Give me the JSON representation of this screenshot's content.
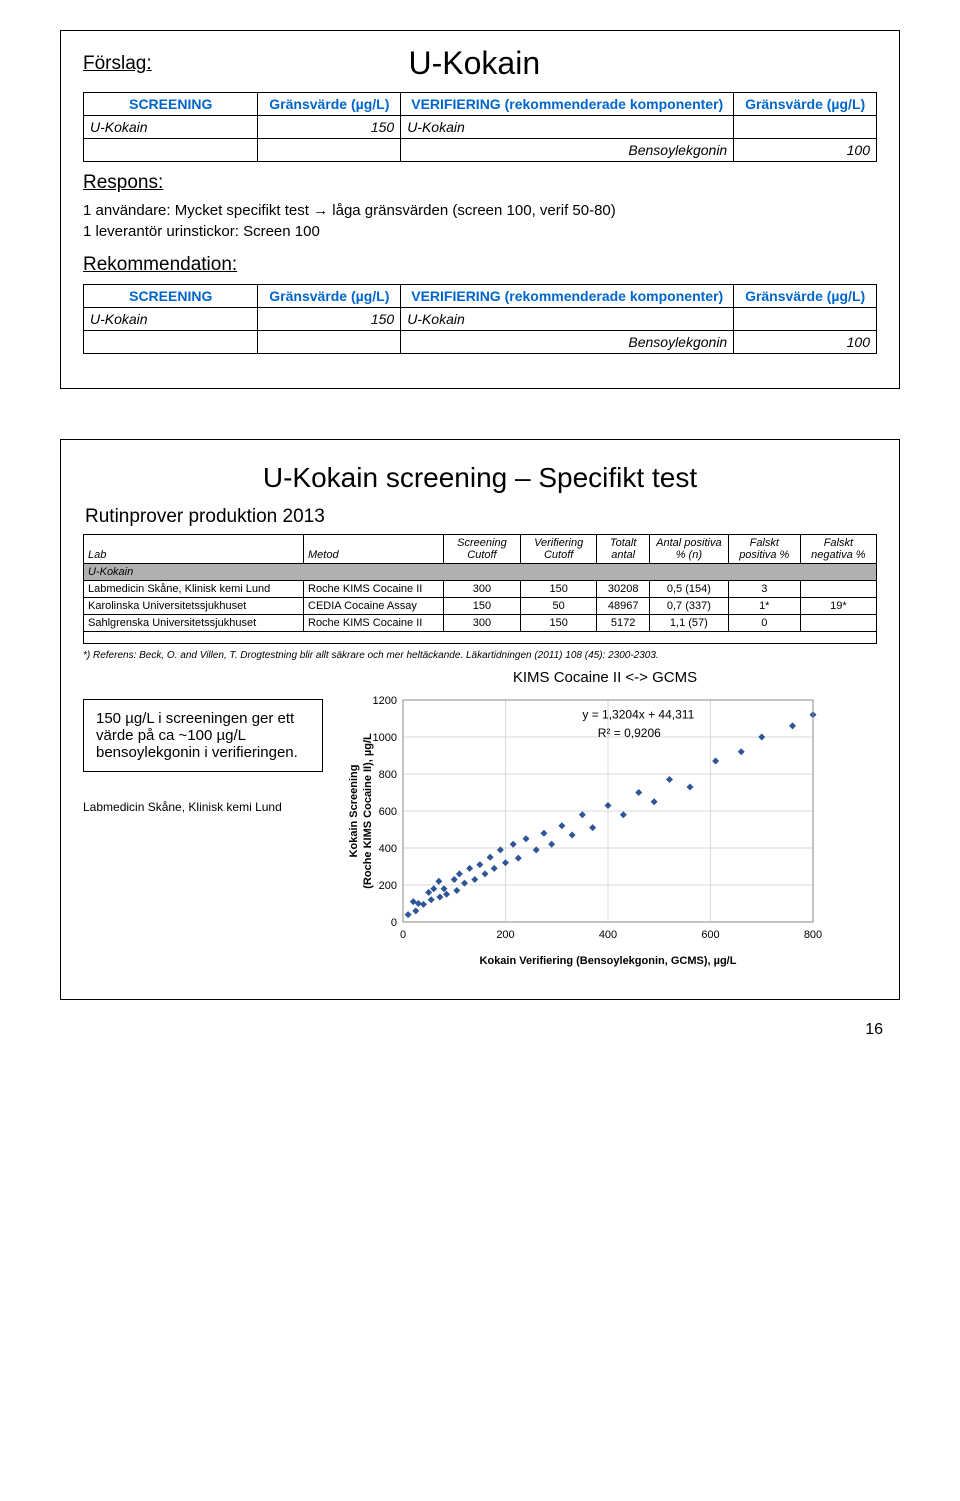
{
  "slide1": {
    "forslag": "Förslag:",
    "title": "U-Kokain",
    "table1": {
      "headers": [
        "SCREENING",
        "Gränsvärde (µg/L)",
        "VERIFIERING (rekommenderade komponenter)",
        "Gränsvärde (µg/L)"
      ],
      "rows": [
        [
          "U-Kokain",
          "150",
          "U-Kokain",
          ""
        ],
        [
          "",
          "",
          "Bensoylekgonin",
          "100"
        ]
      ]
    },
    "respons": "Respons:",
    "respons_lines": [
      "1 användare: Mycket specifikt test → låga gränsvärden (screen 100, verif 50-80)",
      "1 leverantör urinstickor: Screen 100"
    ],
    "rekommendation": "Rekommendation:",
    "table2": {
      "headers": [
        "SCREENING",
        "Gränsvärde (µg/L)",
        "VERIFIERING (rekommenderade komponenter)",
        "Gränsvärde (µg/L)"
      ],
      "rows": [
        [
          "U-Kokain",
          "150",
          "U-Kokain",
          ""
        ],
        [
          "",
          "",
          "Bensoylekgonin",
          "100"
        ]
      ]
    }
  },
  "slide2": {
    "title": "U-Kokain screening – Specifikt test",
    "subtitle": "Rutinprover produktion 2013",
    "data_table": {
      "columns": [
        "Lab",
        "Metod",
        "Screening Cutoff",
        "Verifiering Cutoff",
        "Totalt antal",
        "Antal positiva % (n)",
        "Falskt positiva %",
        "Falskt negativa %"
      ],
      "section_label": "U-Kokain",
      "rows": [
        [
          "Labmedicin Skåne, Klinisk kemi Lund",
          "Roche KIMS Cocaine II",
          "300",
          "150",
          "30208",
          "0,5 (154)",
          "3",
          ""
        ],
        [
          "Karolinska Universitetssjukhuset",
          "CEDIA Cocaine Assay",
          "150",
          "50",
          "48967",
          "0,7 (337)",
          "1*",
          "19*"
        ],
        [
          "Sahlgrenska Universitetssjukhuset",
          "Roche KIMS Cocaine II",
          "300",
          "150",
          "5172",
          "1,1 (57)",
          "0",
          ""
        ]
      ]
    },
    "ref_note": "*) Referens: Beck, O. and Villen, T. Drogtestning blir allt säkrare och mer heltäckande. Läkartidningen (2011) 108 (45): 2300-2303.",
    "chart": {
      "title": "KIMS Cocaine II  <-> GCMS",
      "xlabel": "Kokain Verifiering (Bensoylekgonin, GCMS), µg/L",
      "ylabel_line1": "Kokain Screening",
      "ylabel_line2": "(Roche KIMS Cocaine II), µg/L",
      "xlim": [
        0,
        800
      ],
      "xticks": [
        0,
        200,
        400,
        600,
        800
      ],
      "ylim": [
        0,
        1200
      ],
      "yticks": [
        0,
        200,
        400,
        600,
        800,
        1000,
        1200
      ],
      "equation": "y = 1,3204x + 44,311",
      "r2": "R² = 0,9206",
      "points": [
        [
          10,
          40
        ],
        [
          20,
          110
        ],
        [
          25,
          60
        ],
        [
          30,
          100
        ],
        [
          40,
          95
        ],
        [
          50,
          160
        ],
        [
          55,
          120
        ],
        [
          60,
          180
        ],
        [
          72,
          135
        ],
        [
          70,
          220
        ],
        [
          80,
          180
        ],
        [
          85,
          150
        ],
        [
          100,
          230
        ],
        [
          105,
          170
        ],
        [
          110,
          260
        ],
        [
          120,
          210
        ],
        [
          130,
          290
        ],
        [
          140,
          230
        ],
        [
          150,
          310
        ],
        [
          160,
          260
        ],
        [
          170,
          350
        ],
        [
          178,
          290
        ],
        [
          190,
          390
        ],
        [
          200,
          320
        ],
        [
          215,
          420
        ],
        [
          225,
          345
        ],
        [
          240,
          450
        ],
        [
          260,
          390
        ],
        [
          275,
          480
        ],
        [
          290,
          420
        ],
        [
          310,
          520
        ],
        [
          330,
          470
        ],
        [
          350,
          580
        ],
        [
          370,
          510
        ],
        [
          400,
          630
        ],
        [
          430,
          580
        ],
        [
          460,
          700
        ],
        [
          490,
          650
        ],
        [
          520,
          770
        ],
        [
          560,
          730
        ],
        [
          610,
          870
        ],
        [
          660,
          920
        ],
        [
          700,
          1000
        ],
        [
          760,
          1060
        ],
        [
          800,
          1120
        ]
      ],
      "grid_color": "#d9d9d9",
      "point_color": "#2f5597",
      "marker": "diamond"
    },
    "info_box": "150 µg/L i screeningen ger ett värde på ca ~100 µg/L bensoylekgonin i verifieringen.",
    "footer": "Labmedicin Skåne, Klinisk kemi Lund",
    "pagenum": "16"
  }
}
